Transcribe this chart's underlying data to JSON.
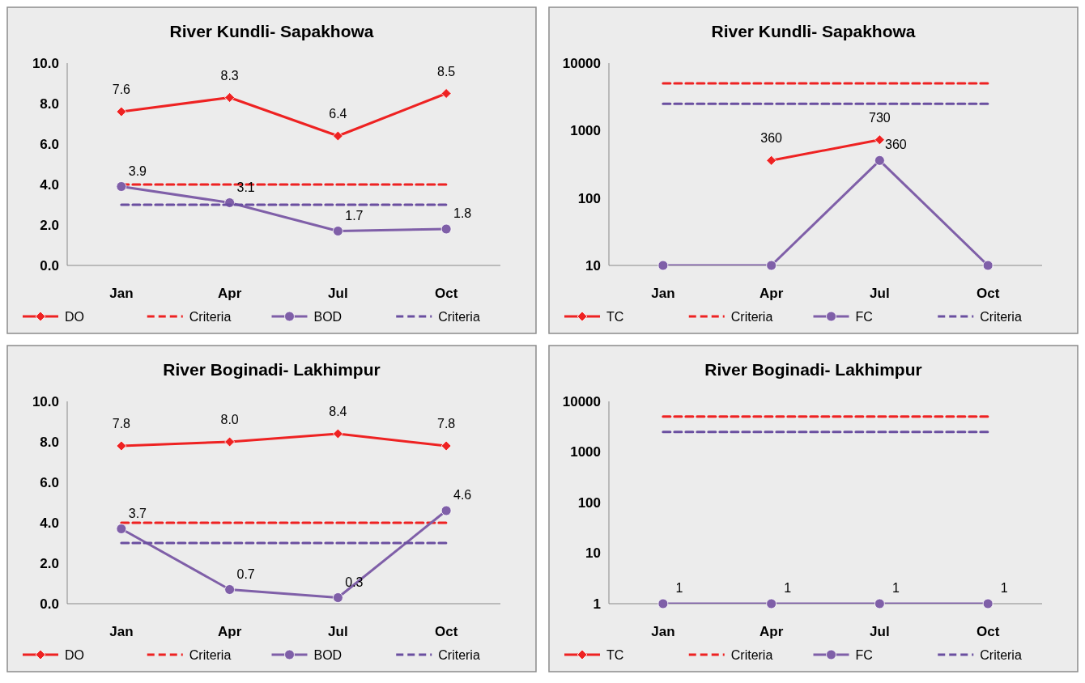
{
  "chart_data": [
    {
      "type": "line",
      "title": "River Kundli- Sapakhowa",
      "categories": [
        "Jan",
        "Apr",
        "Jul",
        "Oct"
      ],
      "ylim": [
        0,
        10
      ],
      "yticks": [
        {
          "value": 0,
          "label": "0.0"
        },
        {
          "value": 2,
          "label": "2.0"
        },
        {
          "value": 4,
          "label": "4.0"
        },
        {
          "value": 6,
          "label": "6.0"
        },
        {
          "value": 8,
          "label": "8.0"
        },
        {
          "value": 10,
          "label": "10.0"
        }
      ],
      "legend": "bottom",
      "grid": false,
      "series": [
        {
          "name": "DO",
          "color": "#ee2222",
          "values": [
            7.6,
            8.3,
            6.4,
            8.5
          ],
          "marker": "diamond",
          "value_labels": [
            "7.6",
            "8.3",
            "6.4",
            "8.5"
          ]
        },
        {
          "name": "Criteria",
          "color": "#ee2222",
          "values": [
            4,
            4,
            4,
            4
          ],
          "line_style": "dashed",
          "marker": "none"
        },
        {
          "name": "BOD",
          "color": "#7f5fa8",
          "values": [
            3.9,
            3.1,
            1.7,
            1.8
          ],
          "marker": "circle",
          "value_labels": [
            "3.9",
            "3.1",
            "1.7",
            "1.8"
          ]
        },
        {
          "name": "Criteria",
          "color": "#6a4fa0",
          "values": [
            3,
            3,
            3,
            3
          ],
          "line_style": "dashed",
          "marker": "none"
        }
      ]
    },
    {
      "type": "line",
      "title": "River Kundli- Sapakhowa",
      "categories": [
        "Jan",
        "Apr",
        "Jul",
        "Oct"
      ],
      "log": true,
      "ylim": [
        10,
        10000
      ],
      "yticks": [
        10,
        100,
        1000,
        10000
      ],
      "legend": "bottom",
      "grid": false,
      "series": [
        {
          "name": "TC",
          "color": "#ee2222",
          "values": [
            null,
            360,
            730,
            null
          ],
          "marker": "diamond",
          "value_labels": [
            null,
            "360",
            "730",
            null
          ]
        },
        {
          "name": "Criteria",
          "color": "#ee2222",
          "values": [
            5000,
            5000,
            5000,
            5000
          ],
          "line_style": "dashed",
          "marker": "none"
        },
        {
          "name": "FC",
          "color": "#7f5fa8",
          "values": [
            10,
            10,
            360,
            10
          ],
          "marker": "circle",
          "value_labels": [
            null,
            null,
            "360",
            null
          ]
        },
        {
          "name": "Criteria",
          "color": "#6a4fa0",
          "values": [
            2500,
            2500,
            2500,
            2500
          ],
          "line_style": "dashed",
          "marker": "none"
        }
      ]
    },
    {
      "type": "line",
      "title": "River Boginadi- Lakhimpur",
      "categories": [
        "Jan",
        "Apr",
        "Jul",
        "Oct"
      ],
      "ylim": [
        0,
        10
      ],
      "yticks": [
        {
          "value": 0,
          "label": "0.0"
        },
        {
          "value": 2,
          "label": "2.0"
        },
        {
          "value": 4,
          "label": "4.0"
        },
        {
          "value": 6,
          "label": "6.0"
        },
        {
          "value": 8,
          "label": "8.0"
        },
        {
          "value": 10,
          "label": "10.0"
        }
      ],
      "legend": "bottom",
      "grid": false,
      "series": [
        {
          "name": "DO",
          "color": "#ee2222",
          "values": [
            7.8,
            8.0,
            8.4,
            7.8
          ],
          "marker": "diamond",
          "value_labels": [
            "7.8",
            "8.0",
            "8.4",
            "7.8"
          ]
        },
        {
          "name": "Criteria",
          "color": "#ee2222",
          "values": [
            4,
            4,
            4,
            4
          ],
          "line_style": "dashed",
          "marker": "none"
        },
        {
          "name": "BOD",
          "color": "#7f5fa8",
          "values": [
            3.7,
            0.7,
            0.3,
            4.6
          ],
          "marker": "circle",
          "value_labels": [
            "3.7",
            "0.7",
            "0.3",
            "4.6"
          ]
        },
        {
          "name": "Criteria",
          "color": "#6a4fa0",
          "values": [
            3,
            3,
            3,
            3
          ],
          "line_style": "dashed",
          "marker": "none"
        }
      ]
    },
    {
      "type": "line",
      "title": "River Boginadi- Lakhimpur",
      "categories": [
        "Jan",
        "Apr",
        "Jul",
        "Oct"
      ],
      "log": true,
      "ylim": [
        1,
        10000
      ],
      "yticks": [
        1,
        10,
        100,
        1000,
        10000
      ],
      "legend": "bottom",
      "grid": false,
      "series": [
        {
          "name": "TC",
          "color": "#ee2222",
          "values": [
            null,
            null,
            null,
            null
          ],
          "marker": "diamond"
        },
        {
          "name": "Criteria",
          "color": "#ee2222",
          "values": [
            5000,
            5000,
            5000,
            5000
          ],
          "line_style": "dashed",
          "marker": "none"
        },
        {
          "name": "FC",
          "color": "#7f5fa8",
          "values": [
            1,
            1,
            1,
            1
          ],
          "marker": "circle",
          "value_labels": [
            "1",
            "1",
            "1",
            "1"
          ]
        },
        {
          "name": "Criteria",
          "color": "#6a4fa0",
          "values": [
            2500,
            2500,
            2500,
            2500
          ],
          "line_style": "dashed",
          "marker": "none"
        }
      ]
    }
  ]
}
